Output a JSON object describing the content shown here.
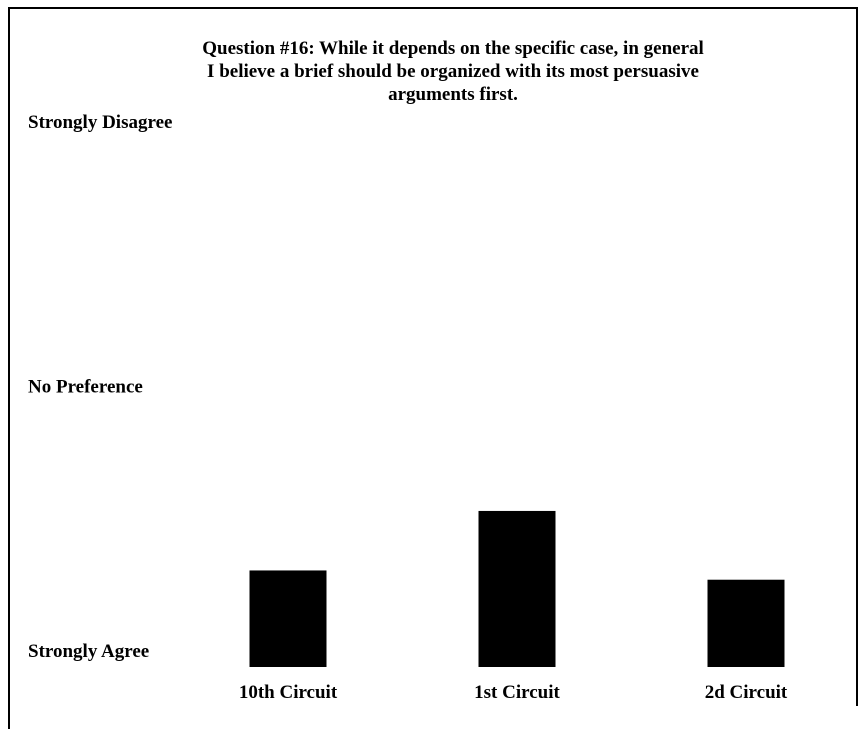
{
  "chart_data": {
    "type": "bar",
    "title": [
      "Question #16: While it depends on the specific case, in general",
      "I believe a brief should be organized with its most persuasive",
      "arguments first."
    ],
    "categories": [
      "10th Circuit",
      "1st Circuit",
      "2d Circuit"
    ],
    "values": [
      1.73,
      2.18,
      1.66
    ],
    "color": "#000000",
    "ylim": [
      1,
      5
    ],
    "yticks": [
      {
        "value": 1,
        "label": "Strongly Agree"
      },
      {
        "value": 3,
        "label": "No Preference"
      },
      {
        "value": 5,
        "label": "Strongly Disagree"
      }
    ],
    "grid": false
  }
}
